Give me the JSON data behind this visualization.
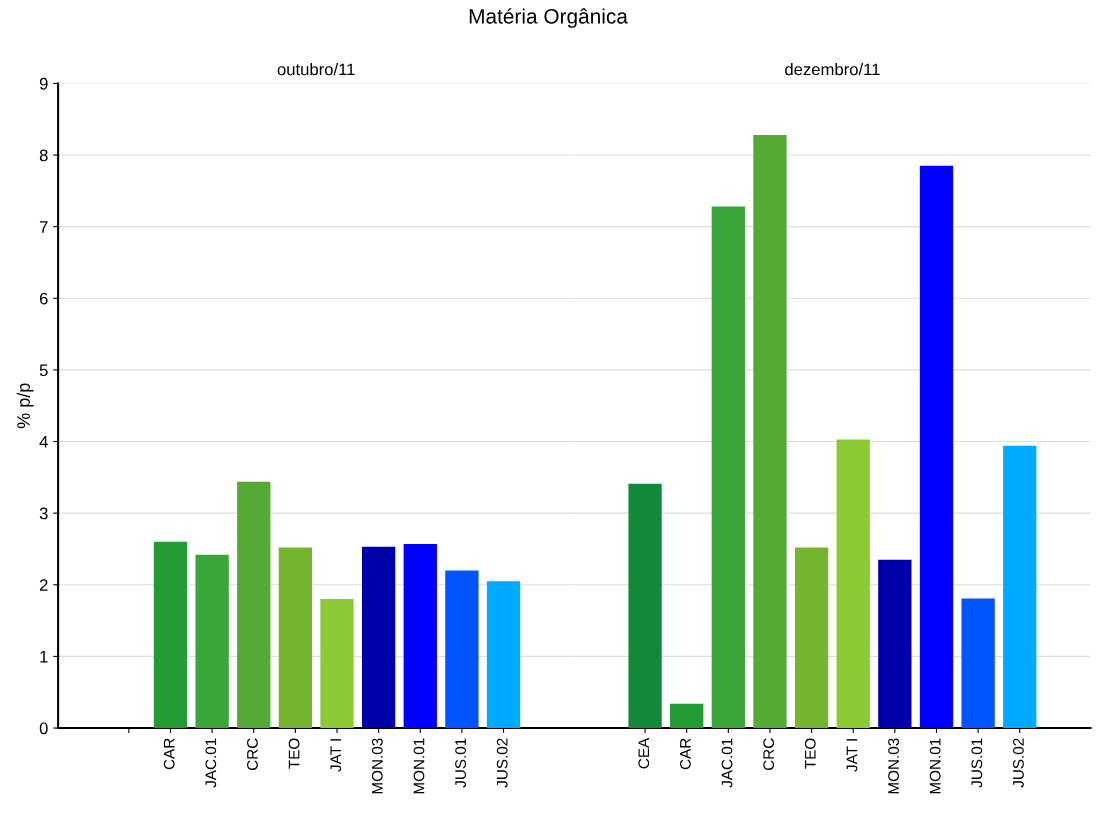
{
  "chart_data": [
    {
      "type": "bar",
      "title": "Matéria Orgânica",
      "subtitle": "outubro/11",
      "ylabel": "% p/p",
      "categories": [
        null,
        "CAR",
        "JAC.01",
        "CRC",
        "TEO",
        "JAT I",
        "MON.03",
        "MON.01",
        "JUS.01",
        "JUS.02"
      ],
      "values": [
        null,
        2.6,
        2.42,
        3.44,
        2.52,
        1.8,
        2.53,
        2.57,
        2.2,
        2.05
      ],
      "colors": [
        "#138a3a",
        "#239b35",
        "#3aa63a",
        "#55aa35",
        "#75b52f",
        "#8ccb35",
        "#0000aa",
        "#0000ff",
        "#0055ff",
        "#00aaff"
      ],
      "ylim": [
        0,
        9
      ],
      "yticks": [
        0,
        1,
        2,
        3,
        4,
        5,
        6,
        7,
        8,
        9
      ],
      "grid": "y"
    },
    {
      "type": "bar",
      "subtitle": "dezembro/11",
      "categories": [
        "CEA",
        "CAR",
        "JAC.01",
        "CRC",
        "TEO",
        "JAT I",
        "MON.03",
        "MON.01",
        "JUS.01",
        "JUS.02"
      ],
      "values": [
        3.41,
        0.34,
        7.28,
        8.28,
        2.52,
        4.03,
        2.35,
        7.85,
        1.81,
        3.94
      ],
      "colors": [
        "#138a3a",
        "#239b35",
        "#3aa63a",
        "#55aa35",
        "#75b52f",
        "#8ccb35",
        "#0000aa",
        "#0000ff",
        "#0055ff",
        "#00aaff"
      ],
      "ylim": [
        0,
        9
      ],
      "yticks": [
        0,
        1,
        2,
        3,
        4,
        5,
        6,
        7,
        8,
        9
      ],
      "grid": "y",
      "tick_labels": "x"
    }
  ]
}
